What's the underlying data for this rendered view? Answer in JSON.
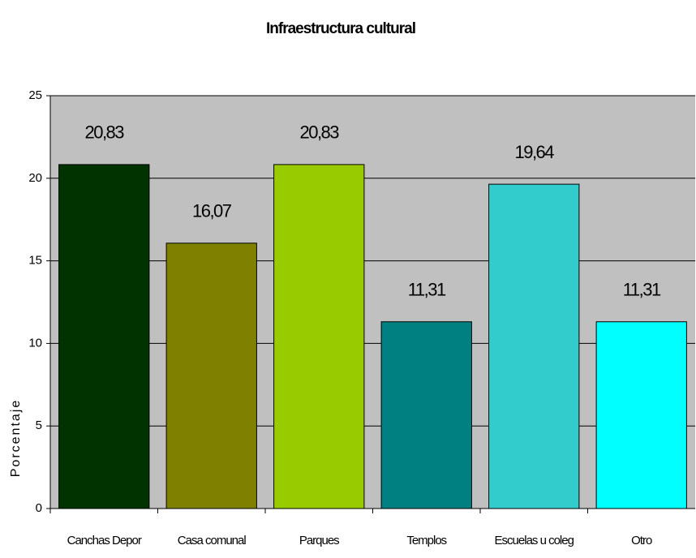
{
  "chart_data": {
    "type": "bar",
    "title": "Infraestructura cultural",
    "y_label": "Porcentaje",
    "categories": [
      "Canchas Depor",
      "Casa comunal",
      "Parques",
      "Templos",
      "Escuelas u coleg",
      "Otro"
    ],
    "values": [
      20.83,
      16.07,
      20.83,
      11.31,
      19.64,
      11.31
    ],
    "value_labels": [
      "20,83",
      "16,07",
      "20,83",
      "11,31",
      "19,64",
      "11,31"
    ],
    "colors": [
      "#003300",
      "#808000",
      "#99cc00",
      "#008080",
      "#33cccc",
      "#00ffff"
    ],
    "ylim": [
      0,
      25
    ],
    "yticks": [
      0,
      5,
      10,
      15,
      20,
      25
    ],
    "grid": true
  }
}
